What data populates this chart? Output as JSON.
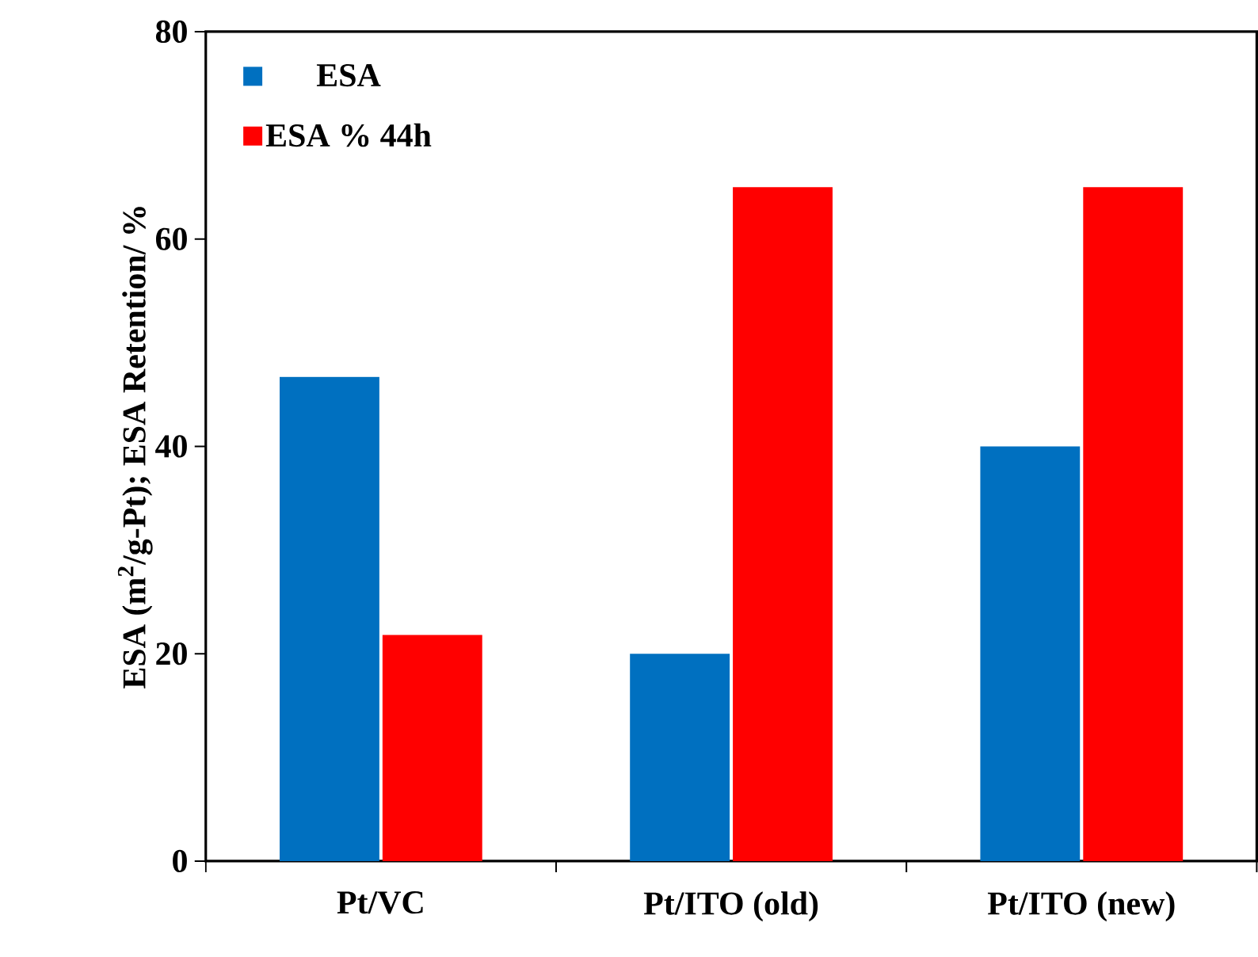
{
  "chart_data": {
    "type": "bar",
    "ylabel": "ESA (m$^{2}$/g-Pt); ESA Retention/ %",
    "categories": [
      "Pt/VC",
      "Pt/ITO (old)",
      "Pt/ITO (new)"
    ],
    "series": [
      {
        "name": "ESA",
        "color": "#0070c0",
        "values": [
          46.7,
          20,
          40
        ]
      },
      {
        "name": "ESA % 44h",
        "color": "#ff0000",
        "values": [
          21.8,
          65,
          65
        ]
      }
    ],
    "ylim": [
      0,
      80
    ],
    "yticks": [
      0,
      20,
      40,
      60,
      80
    ],
    "legend": "top left"
  }
}
